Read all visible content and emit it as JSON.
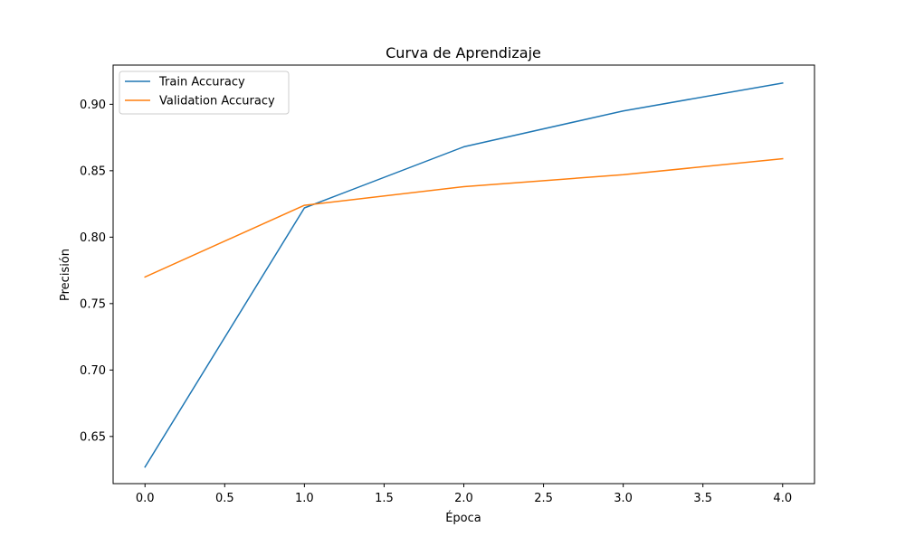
{
  "chart_data": {
    "type": "line",
    "title": "Curva de Aprendizaje",
    "xlabel": "Época",
    "ylabel": "Precisión",
    "x": [
      0,
      1,
      2,
      3,
      4
    ],
    "xlim": [
      -0.2,
      4.2
    ],
    "ylim": [
      0.6145,
      0.9295
    ],
    "x_ticks": [
      0.0,
      0.5,
      1.0,
      1.5,
      2.0,
      2.5,
      3.0,
      3.5,
      4.0
    ],
    "x_tick_labels": [
      "0.0",
      "0.5",
      "1.0",
      "1.5",
      "2.0",
      "2.5",
      "3.0",
      "3.5",
      "4.0"
    ],
    "y_ticks": [
      0.65,
      0.7,
      0.75,
      0.8,
      0.85,
      0.9
    ],
    "y_tick_labels": [
      "0.65",
      "0.70",
      "0.75",
      "0.80",
      "0.85",
      "0.90"
    ],
    "grid": false,
    "legend_position": "top-left",
    "series": [
      {
        "name": "Train Accuracy",
        "color": "#1f77b4",
        "values": [
          0.627,
          0.822,
          0.868,
          0.895,
          0.916
        ]
      },
      {
        "name": "Validation Accuracy",
        "color": "#ff7f0e",
        "values": [
          0.77,
          0.824,
          0.838,
          0.847,
          0.859
        ]
      }
    ]
  }
}
